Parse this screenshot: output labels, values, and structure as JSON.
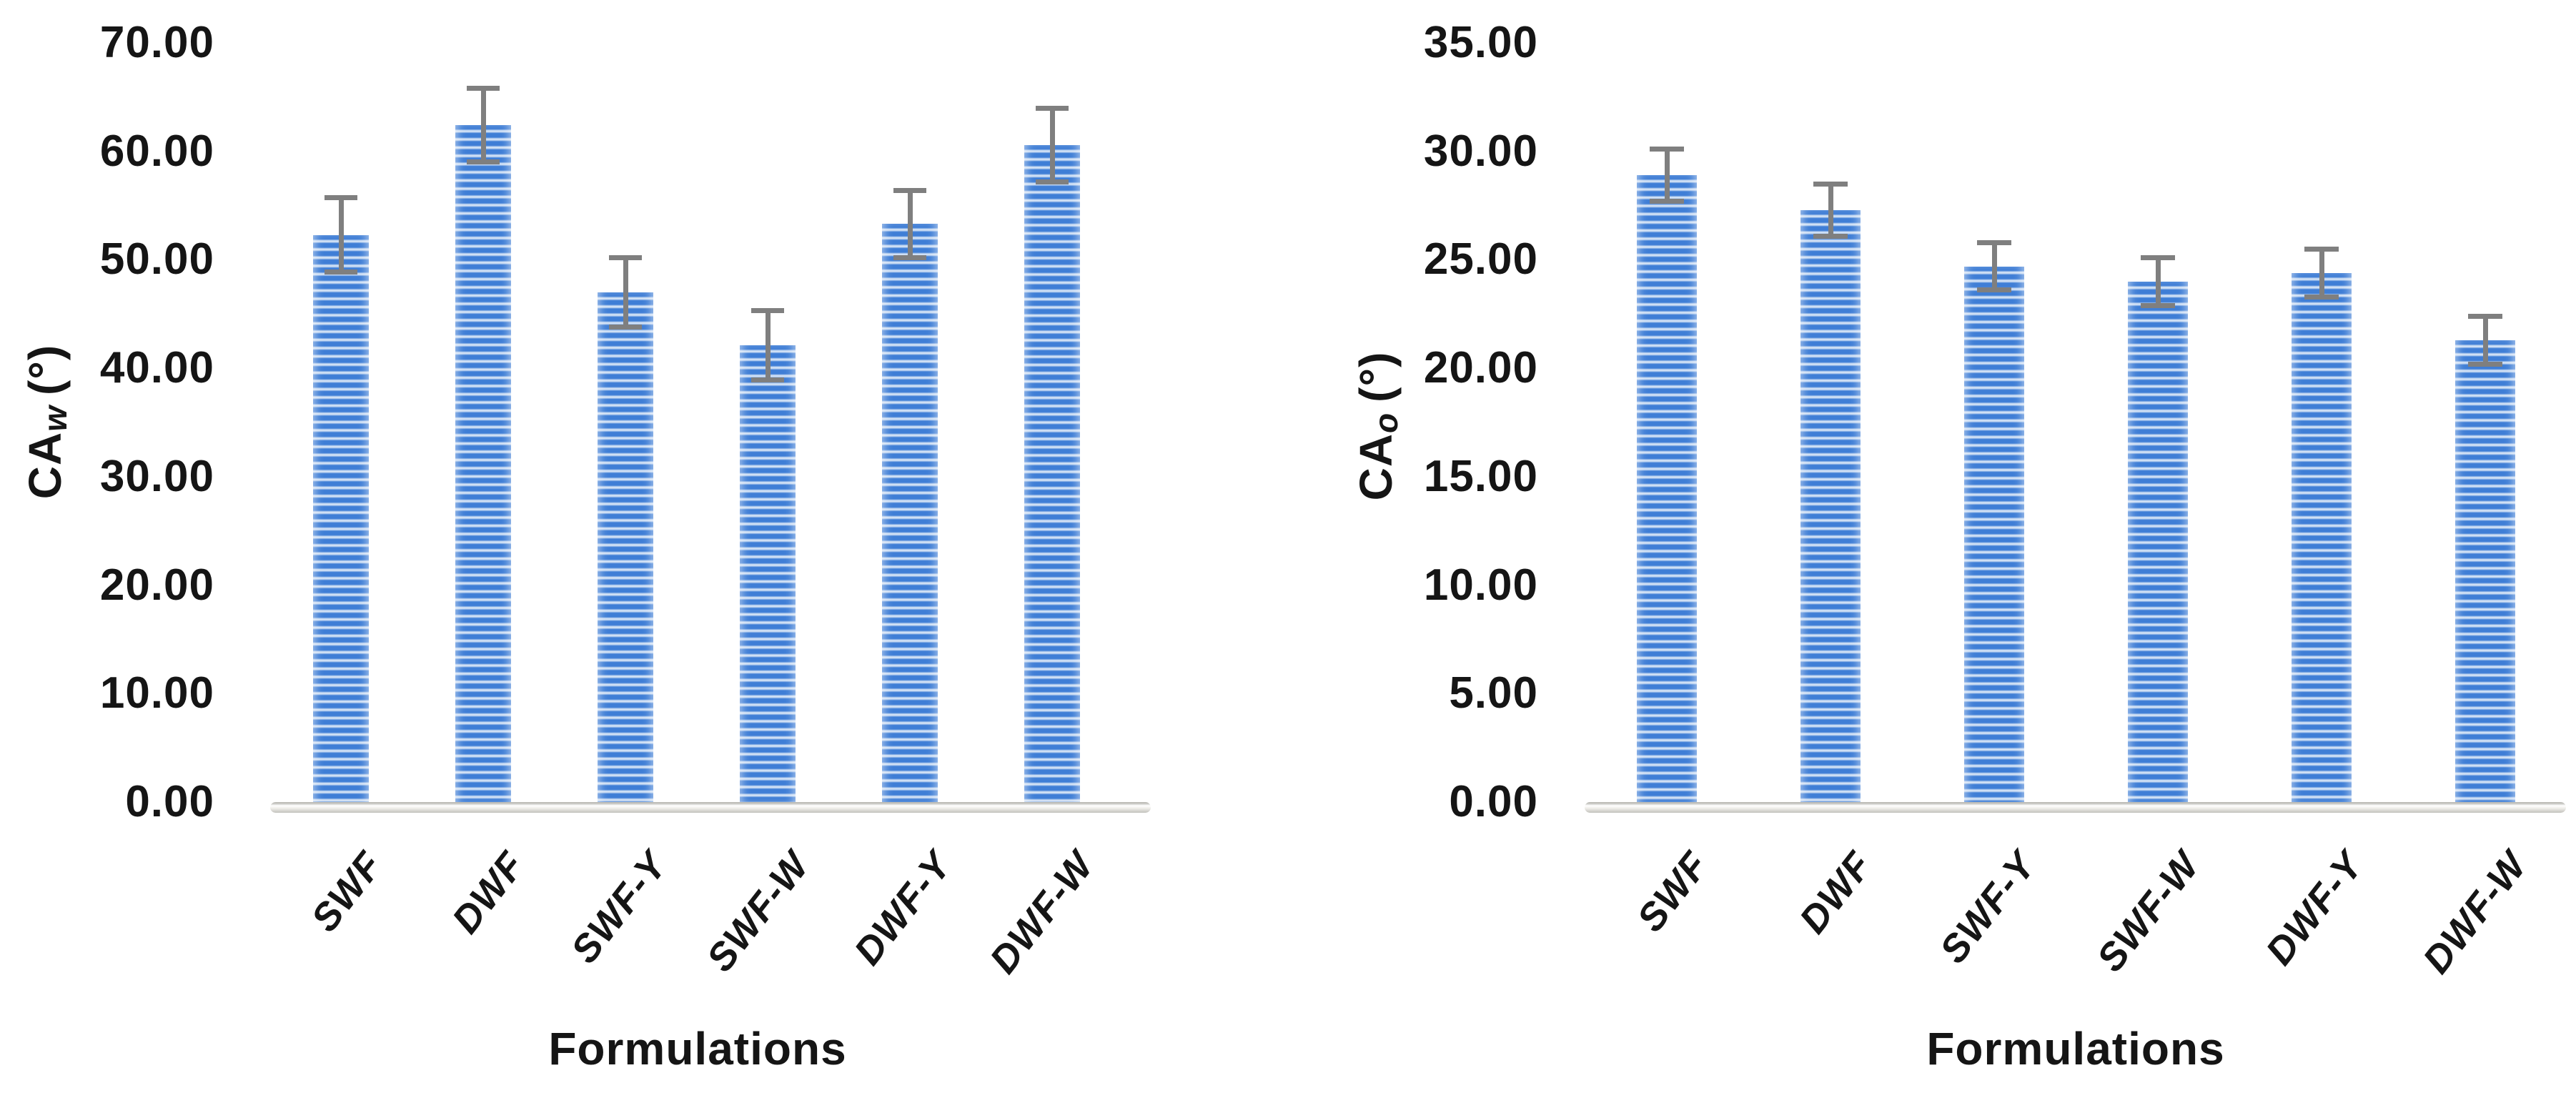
{
  "figure": {
    "background": "#ffffff"
  },
  "chart_data": [
    {
      "type": "bar",
      "title": "",
      "xlabel": "Formulations",
      "ylabel": {
        "main": "CA",
        "sub": "w",
        "unit": "(°)"
      },
      "categories": [
        "SWF",
        "DWF",
        "SWF-Y",
        "SWF-W",
        "DWF-Y",
        "DWF-W"
      ],
      "values": [
        52.3,
        62.4,
        47.0,
        42.1,
        53.3,
        60.6
      ],
      "errors": [
        3.4,
        3.4,
        3.2,
        3.2,
        3.1,
        3.4
      ],
      "ylim": [
        0,
        70
      ],
      "ystep": 10,
      "yticks": [
        "0.00",
        "10.00",
        "20.00",
        "30.00",
        "40.00",
        "50.00",
        "60.00",
        "70.00"
      ],
      "grid": false,
      "legend": null,
      "bar_style": "horizontal-stripes",
      "error_bars": "plus-minus"
    },
    {
      "type": "bar",
      "title": "",
      "xlabel": "Formulations",
      "ylabel": {
        "main": "CA",
        "sub": "o",
        "unit": "(°)"
      },
      "categories": [
        "SWF",
        "DWF",
        "SWF-Y",
        "SWF-W",
        "DWF-Y",
        "DWF-W"
      ],
      "values": [
        28.9,
        27.3,
        24.7,
        24.0,
        24.4,
        21.3
      ],
      "errors": [
        1.2,
        1.2,
        1.1,
        1.1,
        1.1,
        1.1
      ],
      "ylim": [
        0,
        35
      ],
      "ystep": 5,
      "yticks": [
        "0.00",
        "5.00",
        "10.00",
        "15.00",
        "20.00",
        "25.00",
        "30.00",
        "35.00"
      ],
      "grid": false,
      "legend": null,
      "bar_style": "horizontal-stripes",
      "error_bars": "plus-minus"
    }
  ],
  "colors": {
    "bar_primary": "#3F7ED6",
    "bar_stripe_light": "#A9C6EC",
    "bar_stripe_pale": "#E2ECF9",
    "error_bar": "#7F7F7F",
    "axis_floor": "#D9D7D2",
    "text": "#151515",
    "background": "#FFFFFF"
  }
}
